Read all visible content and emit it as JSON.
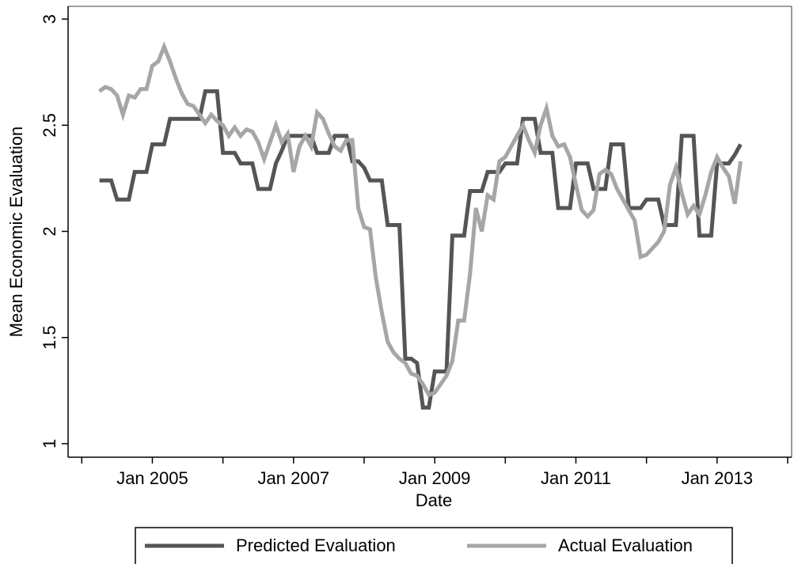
{
  "chart_data": {
    "type": "line",
    "y_label": "Mean Economic Evaluation",
    "x_label": "Date",
    "x": [
      "2004-04",
      "2004-05",
      "2004-06",
      "2004-07",
      "2004-08",
      "2004-09",
      "2004-10",
      "2004-11",
      "2004-12",
      "2005-01",
      "2005-02",
      "2005-03",
      "2005-04",
      "2005-05",
      "2005-06",
      "2005-07",
      "2005-08",
      "2005-09",
      "2005-10",
      "2005-11",
      "2005-12",
      "2006-01",
      "2006-02",
      "2006-03",
      "2006-04",
      "2006-05",
      "2006-06",
      "2006-07",
      "2006-08",
      "2006-09",
      "2006-10",
      "2006-11",
      "2006-12",
      "2007-01",
      "2007-02",
      "2007-03",
      "2007-04",
      "2007-05",
      "2007-06",
      "2007-07",
      "2007-08",
      "2007-09",
      "2007-10",
      "2007-11",
      "2007-12",
      "2008-01",
      "2008-02",
      "2008-03",
      "2008-04",
      "2008-05",
      "2008-06",
      "2008-07",
      "2008-08",
      "2008-09",
      "2008-10",
      "2008-11",
      "2008-12",
      "2009-01",
      "2009-02",
      "2009-03",
      "2009-04",
      "2009-05",
      "2009-06",
      "2009-07",
      "2009-08",
      "2009-09",
      "2009-10",
      "2009-11",
      "2009-12",
      "2010-01",
      "2010-02",
      "2010-03",
      "2010-04",
      "2010-05",
      "2010-06",
      "2010-07",
      "2010-08",
      "2010-09",
      "2010-10",
      "2010-11",
      "2010-12",
      "2011-01",
      "2011-02",
      "2011-03",
      "2011-04",
      "2011-05",
      "2011-06",
      "2011-07",
      "2011-08",
      "2011-09",
      "2011-10",
      "2011-11",
      "2011-12",
      "2012-01",
      "2012-02",
      "2012-03",
      "2012-04",
      "2012-05",
      "2012-06",
      "2012-07",
      "2012-08",
      "2012-09",
      "2012-10",
      "2012-11",
      "2012-12",
      "2013-01",
      "2013-02",
      "2013-03",
      "2013-04",
      "2013-05"
    ],
    "series": [
      {
        "name": "Predicted Evaluation",
        "color": "#555555",
        "values": [
          2.24,
          2.24,
          2.24,
          2.15,
          2.15,
          2.15,
          2.28,
          2.28,
          2.28,
          2.41,
          2.41,
          2.41,
          2.53,
          2.53,
          2.53,
          2.53,
          2.53,
          2.53,
          2.66,
          2.66,
          2.66,
          2.37,
          2.37,
          2.37,
          2.32,
          2.32,
          2.32,
          2.2,
          2.2,
          2.2,
          2.32,
          2.38,
          2.45,
          2.45,
          2.45,
          2.45,
          2.45,
          2.37,
          2.37,
          2.37,
          2.45,
          2.45,
          2.45,
          2.33,
          2.33,
          2.3,
          2.24,
          2.24,
          2.24,
          2.03,
          2.03,
          2.03,
          1.4,
          1.4,
          1.38,
          1.17,
          1.17,
          1.34,
          1.34,
          1.34,
          1.98,
          1.98,
          1.98,
          2.19,
          2.19,
          2.19,
          2.28,
          2.28,
          2.28,
          2.32,
          2.32,
          2.32,
          2.53,
          2.53,
          2.53,
          2.37,
          2.37,
          2.37,
          2.11,
          2.11,
          2.11,
          2.32,
          2.32,
          2.32,
          2.2,
          2.2,
          2.2,
          2.41,
          2.41,
          2.41,
          2.11,
          2.11,
          2.11,
          2.15,
          2.15,
          2.15,
          2.03,
          2.03,
          2.03,
          2.45,
          2.45,
          2.45,
          1.98,
          1.98,
          1.98,
          2.32,
          2.32,
          2.32,
          2.36,
          2.41
        ]
      },
      {
        "name": "Actual Evaluation",
        "color": "#a6a6a6",
        "values": [
          2.66,
          2.68,
          2.67,
          2.64,
          2.55,
          2.64,
          2.63,
          2.67,
          2.67,
          2.78,
          2.8,
          2.87,
          2.8,
          2.72,
          2.65,
          2.6,
          2.59,
          2.55,
          2.51,
          2.55,
          2.52,
          2.5,
          2.45,
          2.49,
          2.45,
          2.48,
          2.47,
          2.42,
          2.34,
          2.42,
          2.5,
          2.42,
          2.46,
          2.28,
          2.4,
          2.45,
          2.4,
          2.56,
          2.53,
          2.46,
          2.4,
          2.38,
          2.43,
          2.43,
          2.11,
          2.02,
          2.01,
          1.78,
          1.62,
          1.48,
          1.43,
          1.4,
          1.38,
          1.33,
          1.32,
          1.28,
          1.23,
          1.24,
          1.28,
          1.32,
          1.39,
          1.58,
          1.58,
          1.8,
          2.11,
          2.0,
          2.17,
          2.15,
          2.33,
          2.35,
          2.4,
          2.45,
          2.5,
          2.43,
          2.37,
          2.5,
          2.58,
          2.45,
          2.4,
          2.41,
          2.35,
          2.22,
          2.1,
          2.07,
          2.1,
          2.27,
          2.29,
          2.27,
          2.2,
          2.15,
          2.1,
          2.05,
          1.88,
          1.89,
          1.92,
          1.95,
          2.0,
          2.22,
          2.3,
          2.18,
          2.08,
          2.12,
          2.08,
          2.17,
          2.28,
          2.35,
          2.3,
          2.26,
          2.13,
          2.33
        ]
      }
    ],
    "xlim": [
      "2003-10",
      "2014-01"
    ],
    "xticks": [
      {
        "value": "2005-01",
        "label": "Jan 2005"
      },
      {
        "value": "2007-01",
        "label": "Jan 2007"
      },
      {
        "value": "2009-01",
        "label": "Jan 2009"
      },
      {
        "value": "2011-01",
        "label": "Jan 2011"
      },
      {
        "value": "2013-01",
        "label": "Jan 2013"
      }
    ],
    "xminorticks": [
      "2004-01",
      "2006-01",
      "2008-01",
      "2010-01",
      "2012-01",
      "2014-01"
    ],
    "ylim": [
      0.94,
      3.06
    ],
    "yticks": [
      1,
      1.5,
      2,
      2.5,
      3
    ],
    "legend": "bottom"
  }
}
